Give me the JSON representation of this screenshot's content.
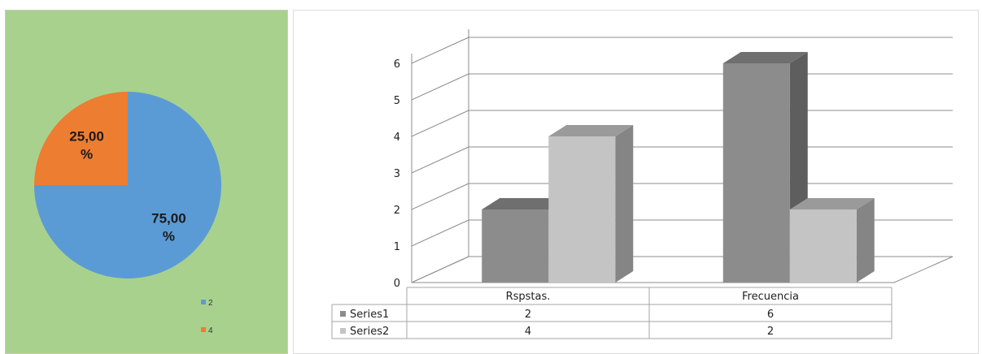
{
  "colors": {
    "pie_background": "#a9d18e",
    "slice_blue": "#5b9bd5",
    "slice_orange": "#ed7d31",
    "series1_front": "#8c8c8c",
    "series1_top": "#6f6f6f",
    "series1_side": "#5e5e5e",
    "series2_front": "#c4c4c4",
    "series2_top": "#9a9a9a",
    "series2_side": "#858585",
    "gridline": "#8c8c8c"
  },
  "chart_data": [
    {
      "type": "pie",
      "title": "",
      "slices": [
        {
          "label": "2",
          "value": 75.0,
          "display": "75,00 %",
          "color": "#5b9bd5"
        },
        {
          "label": "4",
          "value": 25.0,
          "display": "25,00 %",
          "color": "#ed7d31"
        }
      ],
      "legend": [
        "2",
        "4"
      ],
      "legend_position": "bottom-right"
    },
    {
      "type": "bar",
      "style": "3d-clustered-column",
      "title": "",
      "categories": [
        "Rspstas.",
        "Frecuencia"
      ],
      "series": [
        {
          "name": "Series1",
          "values": [
            2,
            6
          ]
        },
        {
          "name": "Series2",
          "values": [
            4,
            2
          ]
        }
      ],
      "yticks": [
        0,
        1,
        2,
        3,
        4,
        5,
        6
      ],
      "ylim": [
        0,
        6
      ],
      "grid": true,
      "data_table": true,
      "xlabel": "",
      "ylabel": ""
    }
  ]
}
